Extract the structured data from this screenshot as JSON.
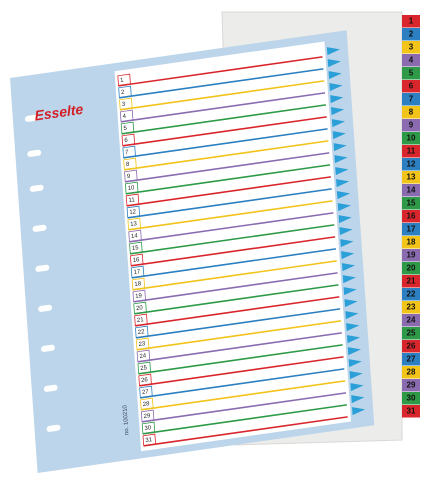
{
  "brand": "Esselte",
  "code": "no. 100210",
  "rows": [
    "1",
    "2",
    "3",
    "4",
    "5",
    "6",
    "7",
    "8",
    "9",
    "10",
    "11",
    "12",
    "13",
    "14",
    "15",
    "16",
    "17",
    "18",
    "19",
    "20",
    "21",
    "22",
    "23",
    "24",
    "25",
    "26",
    "27",
    "28",
    "29",
    "30",
    "31"
  ],
  "tabs": [
    "1",
    "2",
    "3",
    "4",
    "5",
    "6",
    "7",
    "8",
    "9",
    "10",
    "11",
    "12",
    "13",
    "14",
    "15",
    "16",
    "17",
    "18",
    "19",
    "20",
    "21",
    "22",
    "23",
    "24",
    "25",
    "26",
    "27",
    "28",
    "29",
    "30",
    "31"
  ]
}
